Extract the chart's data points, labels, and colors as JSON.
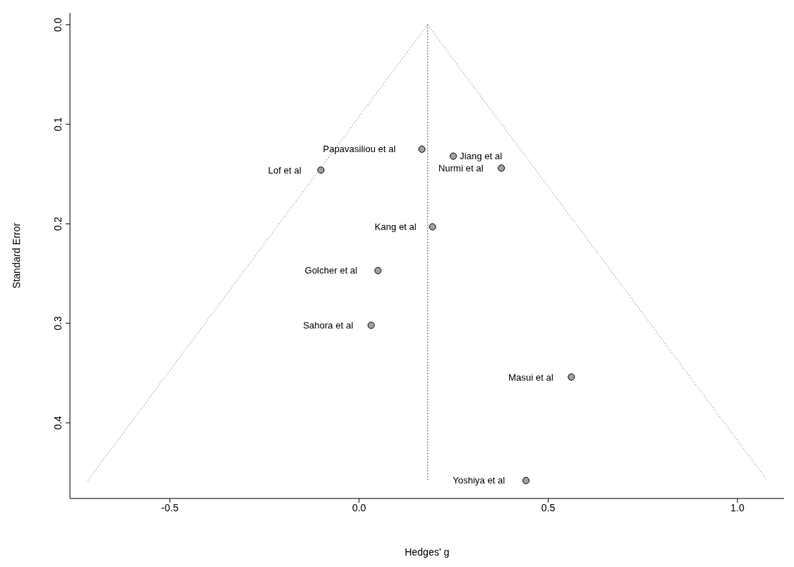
{
  "chart_data": {
    "type": "scatter",
    "xlabel": "Hedges' g",
    "ylabel": "Standard Error",
    "xlim": [
      -0.764,
      1.123
    ],
    "ylim": [
      0.476,
      -0.012
    ],
    "xticks": [
      -0.5,
      {
        "value": 0,
        "label": "0.0"
      },
      0.5,
      {
        "value": 1,
        "label": "1.0"
      }
    ],
    "yticks": [
      {
        "value": 0,
        "label": "0.0"
      },
      0.1,
      0.2,
      0.3,
      0.4
    ],
    "series": [
      {
        "marker": "circle",
        "color": "#a0a0a0",
        "x": [
          0.166,
          0.249,
          0.376,
          -0.101,
          0.194,
          0.05,
          0.032,
          0.561,
          0.441
        ],
        "values": [
          0.125,
          0.132,
          0.144,
          0.146,
          0.203,
          0.247,
          0.302,
          0.354,
          0.458
        ]
      },
      {
        "type": "line",
        "marker": "none",
        "color": "#808080",
        "line_style": "dotted",
        "x": [
          -0.717,
          0.181,
          1.079
        ],
        "values": [
          0.458,
          0,
          0.458
        ]
      },
      {
        "type": "line",
        "marker": "none",
        "color": "#000000",
        "line_style": "dotted",
        "x": [
          0.181,
          0.181
        ],
        "values": [
          0,
          0.458
        ]
      }
    ],
    "annotations": [
      {
        "text": "Papavasiliou et al",
        "x": 0.166,
        "y": 0.125
      },
      {
        "text": "Jiang et al",
        "x": 0.249,
        "y": 0.132
      },
      {
        "text": "Nurmi et al",
        "x": 0.376,
        "y": 0.144
      },
      {
        "text": "Lof et al",
        "x": -0.101,
        "y": 0.146
      },
      {
        "text": "Kang et al",
        "x": 0.194,
        "y": 0.203
      },
      {
        "text": "Golcher et al",
        "x": 0.05,
        "y": 0.247
      },
      {
        "text": "Sahora et al",
        "x": 0.032,
        "y": 0.302
      },
      {
        "text": "Masui et al",
        "x": 0.561,
        "y": 0.354
      },
      {
        "text": "Yoshiya et al",
        "x": 0.441,
        "y": 0.458
      }
    ]
  }
}
